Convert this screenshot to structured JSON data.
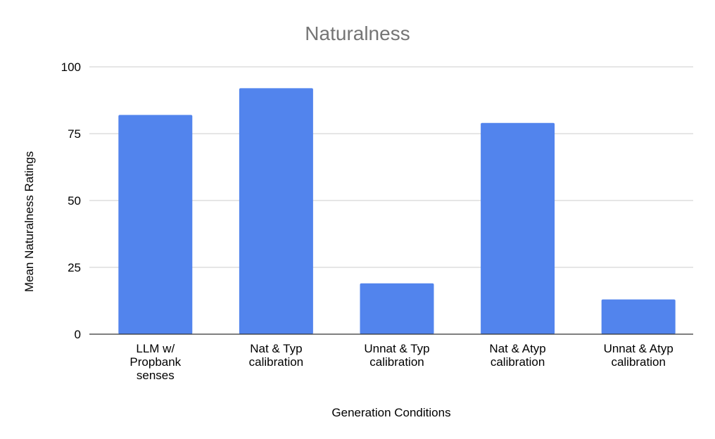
{
  "chart_data": {
    "type": "bar",
    "title": "Naturalness",
    "xlabel": "Generation Conditions",
    "ylabel": "Mean Naturalness Ratings",
    "categories": [
      "LLM w/ Propbank senses",
      "Nat & Typ calibration",
      "Unnat & Typ calibration",
      "Nat & Atyp calibration",
      "Unnat & Atyp calibration"
    ],
    "category_lines": [
      [
        "LLM w/",
        "Propbank",
        "senses"
      ],
      [
        "Nat & Typ",
        "calibration"
      ],
      [
        "Unnat & Typ",
        "calibration"
      ],
      [
        "Nat & Atyp",
        "calibration"
      ],
      [
        "Unnat & Atyp",
        "calibration"
      ]
    ],
    "values": [
      82,
      92,
      19,
      79,
      13
    ],
    "ylim": [
      0,
      100
    ],
    "yticks": [
      0,
      25,
      50,
      75,
      100
    ],
    "grid": true,
    "legend": "none",
    "bar_color": "#5284ED"
  }
}
